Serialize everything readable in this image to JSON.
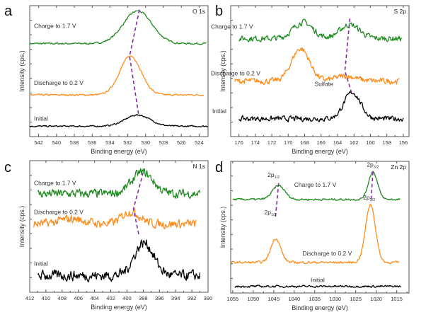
{
  "colors": {
    "charge": "#1f8a1f",
    "discharge": "#ff8c1a",
    "initial": "#000000",
    "guide": "#8a2aa8"
  },
  "chart_data": [
    {
      "type": "line",
      "panel": "a",
      "element": "O 1s",
      "xlabel": "Binding energy (eV)",
      "ylabel": "Intensity (cps.)",
      "xlim": [
        543,
        523
      ],
      "xticks": [
        542,
        540,
        538,
        536,
        534,
        532,
        530,
        528,
        526,
        524
      ],
      "x_reversed": true,
      "grid": false,
      "series": [
        {
          "name": "Charge to 1.7 V",
          "color_key": "charge",
          "baseline": 0.72,
          "noise": 0.006,
          "peaks": [
            {
              "center": 530.9,
              "height": 0.26,
              "width": 1.6
            }
          ],
          "x_range": [
            543,
            523.2
          ],
          "label_pos": "left-above"
        },
        {
          "name": "Discharge to 0.2 V",
          "color_key": "discharge",
          "baseline": 0.31,
          "noise": 0.006,
          "peaks": [
            {
              "center": 531.7,
              "height": 0.31,
              "width": 1.2
            }
          ],
          "x_range": [
            543,
            523.5
          ],
          "label_pos": "left-above"
        },
        {
          "name": "Initial",
          "color_key": "initial",
          "baseline": 0.06,
          "noise": 0.005,
          "peaks": [
            {
              "center": 530.9,
              "height": 0.09,
              "width": 1.4
            }
          ],
          "x_range": [
            543,
            523
          ],
          "label_pos": "left-above"
        }
      ],
      "guides": [
        [
          [
            530.7,
            0.99
          ],
          [
            531.8,
            0.62
          ],
          [
            530.8,
            0.16
          ]
        ]
      ],
      "annotations": []
    },
    {
      "type": "line",
      "panel": "b",
      "element": "S 2p",
      "xlabel": "Binding energy (eV)",
      "ylabel": "Intensity (cps.)",
      "xlim": [
        177,
        155.3
      ],
      "xticks": [
        176,
        174,
        172,
        170,
        168,
        166,
        164,
        162,
        160,
        158,
        156
      ],
      "x_reversed": true,
      "grid": false,
      "series": [
        {
          "name": "Charge to 1.7 V",
          "color_key": "charge",
          "baseline": 0.76,
          "noise": 0.02,
          "peaks": [
            {
              "center": 168.2,
              "height": 0.13,
              "width": 1.2
            },
            {
              "center": 162.5,
              "height": 0.11,
              "width": 1.2
            }
          ],
          "x_range": [
            176,
            156.2
          ],
          "label_pos": "left-above"
        },
        {
          "name": "Discharge to 0.2 V",
          "color_key": "discharge",
          "baseline": 0.42,
          "noise": 0.02,
          "peaks": [
            {
              "center": 168.5,
              "height": 0.26,
              "width": 1.1
            },
            {
              "center": 163.0,
              "height": 0.04,
              "width": 1.3
            }
          ],
          "x_range": [
            176.5,
            156.5
          ],
          "label_pos": "left-above"
        },
        {
          "name": "Initial",
          "color_key": "initial",
          "baseline": 0.12,
          "noise": 0.018,
          "peaks": [
            {
              "center": 162.2,
              "height": 0.21,
              "width": 1.0
            }
          ],
          "x_range": [
            176,
            156
          ],
          "label_pos": "left-above"
        }
      ],
      "guides": [
        [
          [
            162.5,
            0.92
          ],
          [
            163.1,
            0.5
          ],
          [
            162.3,
            0.33
          ]
        ]
      ],
      "annotations": [
        {
          "text": "Sulfate",
          "x": 166.8,
          "y": 0.38
        }
      ]
    },
    {
      "type": "line",
      "panel": "c",
      "element": "N 1s",
      "xlabel": "Binding energy (eV)",
      "ylabel": "Intensity (cps.)",
      "xlim": [
        412,
        390
      ],
      "xticks": [
        412,
        410,
        408,
        406,
        404,
        402,
        400,
        398,
        396,
        394,
        392,
        390
      ],
      "x_reversed": true,
      "grid": false,
      "series": [
        {
          "name": "Charge to 1.7 V",
          "color_key": "charge",
          "baseline": 0.76,
          "noise": 0.03,
          "peaks": [
            {
              "center": 398.1,
              "height": 0.17,
              "width": 1.3
            }
          ],
          "x_range": [
            411,
            391
          ],
          "label_pos": "left-above"
        },
        {
          "name": "Discharge to 0.2 V",
          "color_key": "discharge",
          "baseline": 0.52,
          "noise": 0.03,
          "peaks": [
            {
              "center": 399.5,
              "height": 0.1,
              "width": 1.1
            },
            {
              "center": 406.8,
              "height": 0.04,
              "width": 1.5
            }
          ],
          "x_range": [
            411.5,
            391.5
          ],
          "label_pos": "left-above"
        },
        {
          "name": "Initial",
          "color_key": "initial",
          "baseline": 0.11,
          "noise": 0.035,
          "peaks": [
            {
              "center": 397.9,
              "height": 0.26,
              "width": 1.2
            }
          ],
          "x_range": [
            411,
            391
          ],
          "label_pos": "left-above"
        }
      ],
      "guides": [
        [
          [
            398.0,
            0.93
          ],
          [
            399.2,
            0.64
          ],
          [
            398.5,
            0.42
          ]
        ]
      ],
      "annotations": []
    },
    {
      "type": "line",
      "panel": "d",
      "element": "Zn 2p",
      "xlabel": "Binding energy (eV)",
      "ylabel": "Intensity (cps.)",
      "xlim": [
        1055.5,
        1012
      ],
      "xticks": [
        1055,
        1050,
        1045,
        1040,
        1035,
        1030,
        1025,
        1020,
        1015
      ],
      "x_reversed": true,
      "grid": false,
      "series": [
        {
          "name": "Charge to 1.7 V",
          "color_key": "charge",
          "baseline": 0.72,
          "noise": 0.007,
          "peaks": [
            {
              "center": 1043.8,
              "height": 0.11,
              "width": 1.5
            },
            {
              "center": 1020.8,
              "height": 0.22,
              "width": 1.1
            }
          ],
          "x_range": [
            1055,
            1014.2
          ],
          "label_pos": "middle"
        },
        {
          "name": "Discharge to 0.2 V",
          "color_key": "discharge",
          "baseline": 0.22,
          "noise": 0.008,
          "peaks": [
            {
              "center": 1044.5,
              "height": 0.19,
              "width": 1.2
            },
            {
              "center": 1021.4,
              "height": 0.46,
              "width": 1.2
            }
          ],
          "x_range": [
            1055.5,
            1014.5
          ],
          "label_pos": "middle"
        },
        {
          "name": "Initial",
          "color_key": "initial",
          "baseline": 0.03,
          "noise": 0.007,
          "peaks": [],
          "x_range": [
            1054.5,
            1014
          ],
          "label_pos": "middle"
        }
      ],
      "guides": [
        [
          [
            1043.8,
            0.85
          ],
          [
            1044.6,
            0.57
          ]
        ],
        [
          [
            1020.8,
            0.94
          ],
          [
            1021.3,
            0.7
          ]
        ]
      ],
      "annotations": [
        {
          "text": "2p",
          "sub": "1/2",
          "x": 1046.5,
          "y": 0.9
        },
        {
          "text": "2p",
          "sub": "3/2",
          "x": 1022.3,
          "y": 0.98
        },
        {
          "text": "2p",
          "sub": "3/2",
          "x": 1023.2,
          "y": 0.72
        },
        {
          "text": "2p",
          "sub": "1/2",
          "x": 1047.3,
          "y": 0.6
        }
      ]
    }
  ]
}
